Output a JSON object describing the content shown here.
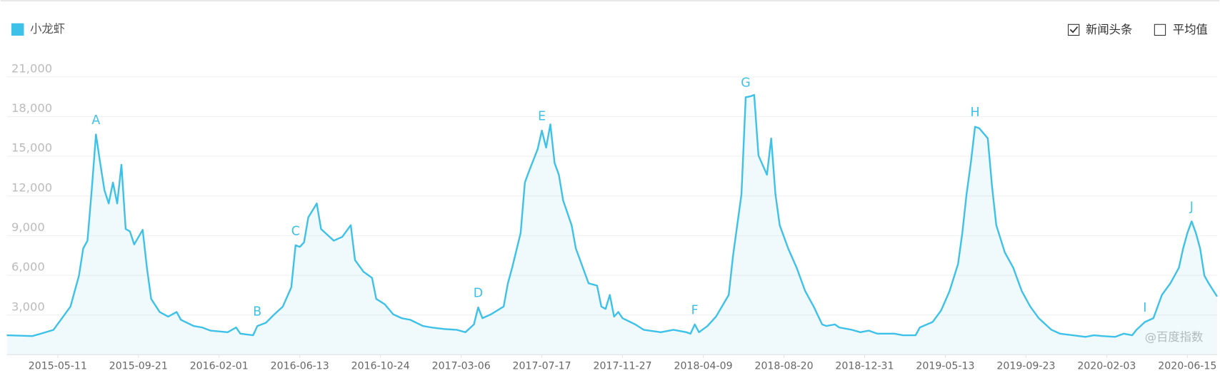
{
  "chart_data": {
    "type": "line",
    "series": [
      {
        "name": "小龙虾",
        "color": "#3ec1e8",
        "values": [
          1470,
          1410,
          1590,
          1880,
          2760,
          3640,
          5980,
          8030,
          8620,
          12430,
          16650,
          14480,
          12430,
          11430,
          13010,
          11430,
          14360,
          9500,
          9320,
          8330,
          9440,
          6570,
          4220,
          3230,
          2880,
          3230,
          2640,
          2170,
          2060,
          1820,
          1700,
          2060,
          1590,
          1470,
          2170,
          2410,
          3050,
          3640,
          5100,
          8270,
          8150,
          8500,
          10380,
          11430,
          9500,
          8910,
          8620,
          8910,
          9790,
          7150,
          6270,
          5810,
          4220,
          3810,
          3050,
          2760,
          2640,
          2170,
          2060,
          1940,
          1880,
          1700,
          2290,
          3580,
          2760,
          3050,
          3640,
          5400,
          6570,
          9200,
          13010,
          13890,
          15530,
          16940,
          15650,
          17410,
          14480,
          13600,
          11670,
          9790,
          8030,
          6270,
          5400,
          5220,
          3640,
          3460,
          4520,
          2880,
          3230,
          2760,
          2290,
          1880,
          1700,
          1880,
          1700,
          1590,
          2290,
          1700,
          2170,
          2880,
          4520,
          7450,
          12130,
          19460,
          19520,
          19630,
          15060,
          13600,
          16350,
          12130,
          9790,
          8030,
          6570,
          4810,
          3640,
          2290,
          2170,
          2290,
          2060,
          1880,
          1700,
          1820,
          1590,
          1590,
          1470,
          1470,
          2060,
          2470,
          3340,
          4810,
          6860,
          9200,
          12130,
          14480,
          17230,
          17110,
          16350,
          12720,
          9790,
          7740,
          6570,
          4810,
          3640,
          2760,
          2170,
          1880,
          1590,
          1470,
          1350,
          1470,
          1410,
          1350,
          1590,
          1470,
          1880,
          2470,
          2760,
          4520,
          5400,
          6570,
          8030,
          9200,
          10080,
          9200,
          8030,
          5980,
          5400,
          4400
        ]
      }
    ],
    "x": [
      "2015-02-16",
      "2015-03-30",
      "2015-04-13",
      "2015-05-04",
      "2015-05-18",
      "2015-06-01",
      "2015-06-15",
      "2015-06-22",
      "2015-06-29",
      "2015-07-06",
      "2015-07-13",
      "2015-07-20",
      "2015-07-27",
      "2015-08-03",
      "2015-08-10",
      "2015-08-17",
      "2015-08-24",
      "2015-08-31",
      "2015-09-07",
      "2015-09-14",
      "2015-09-28",
      "2015-10-05",
      "2015-10-12",
      "2015-10-26",
      "2015-11-09",
      "2015-11-23",
      "2015-11-30",
      "2015-12-21",
      "2016-01-04",
      "2016-01-18",
      "2016-02-15",
      "2016-02-29",
      "2016-03-07",
      "2016-03-28",
      "2016-04-04",
      "2016-04-18",
      "2016-05-02",
      "2016-05-16",
      "2016-05-30",
      "2016-06-06",
      "2016-06-13",
      "2016-06-20",
      "2016-06-27",
      "2016-07-11",
      "2016-07-18",
      "2016-08-01",
      "2016-08-08",
      "2016-08-22",
      "2016-09-05",
      "2016-09-12",
      "2016-09-26",
      "2016-10-10",
      "2016-10-17",
      "2016-10-31",
      "2016-11-14",
      "2016-11-28",
      "2016-12-12",
      "2017-01-02",
      "2017-01-16",
      "2017-02-06",
      "2017-02-27",
      "2017-03-13",
      "2017-03-27",
      "2017-04-03",
      "2017-04-10",
      "2017-04-24",
      "2017-05-15",
      "2017-05-22",
      "2017-05-29",
      "2017-06-12",
      "2017-06-19",
      "2017-06-26",
      "2017-07-10",
      "2017-07-17",
      "2017-07-24",
      "2017-07-31",
      "2017-08-07",
      "2017-08-14",
      "2017-08-21",
      "2017-09-04",
      "2017-09-11",
      "2017-09-25",
      "2017-10-02",
      "2017-10-16",
      "2017-10-23",
      "2017-10-30",
      "2017-11-06",
      "2017-11-13",
      "2017-11-20",
      "2017-11-27",
      "2017-12-18",
      "2018-01-01",
      "2018-01-29",
      "2018-02-19",
      "2018-03-12",
      "2018-03-19",
      "2018-03-26",
      "2018-04-02",
      "2018-04-16",
      "2018-04-30",
      "2018-05-21",
      "2018-05-28",
      "2018-06-11",
      "2018-06-18",
      "2018-06-25",
      "2018-07-02",
      "2018-07-09",
      "2018-07-23",
      "2018-07-30",
      "2018-08-06",
      "2018-08-13",
      "2018-08-27",
      "2018-09-10",
      "2018-09-24",
      "2018-10-08",
      "2018-10-22",
      "2018-10-29",
      "2018-11-12",
      "2018-11-19",
      "2018-12-10",
      "2018-12-24",
      "2019-01-07",
      "2019-01-21",
      "2019-02-18",
      "2019-03-04",
      "2019-03-25",
      "2019-04-01",
      "2019-04-22",
      "2019-05-06",
      "2019-05-20",
      "2019-06-03",
      "2019-06-10",
      "2019-06-17",
      "2019-06-24",
      "2019-07-01",
      "2019-07-08",
      "2019-07-22",
      "2019-07-29",
      "2019-08-05",
      "2019-08-19",
      "2019-09-02",
      "2019-09-16",
      "2019-09-30",
      "2019-10-14",
      "2019-10-28",
      "2019-11-04",
      "2019-11-18",
      "2019-12-09",
      "2019-12-30",
      "2020-01-13",
      "2020-01-27",
      "2020-02-17",
      "2020-03-02",
      "2020-03-16",
      "2020-03-23",
      "2020-04-06",
      "2020-04-20",
      "2020-05-04",
      "2020-05-18",
      "2020-06-01",
      "2020-06-08",
      "2020-06-15",
      "2020-06-22",
      "2020-06-29",
      "2020-07-06",
      "2020-07-13",
      "2020-07-20",
      "2020-08-03"
    ],
    "xlim": [
      "2015-02-16",
      "2020-08-03"
    ],
    "xticks": [
      "2015-05-11",
      "2015-09-21",
      "2016-02-01",
      "2016-06-13",
      "2016-10-24",
      "2017-03-06",
      "2017-07-17",
      "2017-11-27",
      "2018-04-09",
      "2018-08-20",
      "2018-12-31",
      "2019-05-13",
      "2019-09-23",
      "2020-02-03",
      "2020-06-15"
    ],
    "ylim": [
      0,
      21000
    ],
    "yticks": [
      {
        "value": 3000,
        "label": "3,000"
      },
      {
        "value": 6000,
        "label": "6,000"
      },
      {
        "value": 9000,
        "label": "9,000"
      },
      {
        "value": 12000,
        "label": "12,000"
      },
      {
        "value": 15000,
        "label": "15,000"
      },
      {
        "value": 18000,
        "label": "18,000"
      },
      {
        "value": 21000,
        "label": "21,000"
      }
    ],
    "grid": true,
    "annotations": [
      {
        "text": "A",
        "x": "2015-07-13"
      },
      {
        "text": "B",
        "x": "2016-04-04"
      },
      {
        "text": "C",
        "x": "2016-06-06"
      },
      {
        "text": "D",
        "x": "2017-04-03"
      },
      {
        "text": "E",
        "x": "2017-07-17"
      },
      {
        "text": "F",
        "x": "2018-03-26"
      },
      {
        "text": "G",
        "x": "2018-06-18"
      },
      {
        "text": "H",
        "x": "2019-07-01"
      },
      {
        "text": "I",
        "x": "2020-04-06"
      },
      {
        "text": "J",
        "x": "2020-06-22"
      }
    ],
    "toggles": [
      {
        "label": "新闻头条",
        "checked": true
      },
      {
        "label": "平均值",
        "checked": false
      }
    ],
    "watermark": "@百度指数"
  }
}
